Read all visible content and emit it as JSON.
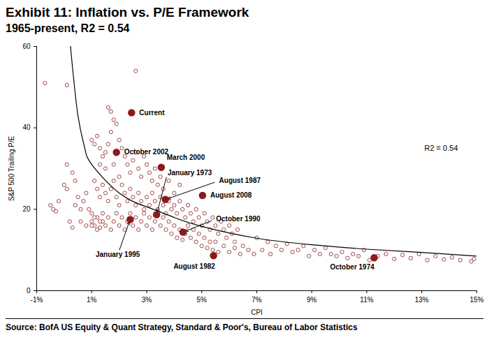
{
  "chart_data": {
    "type": "scatter",
    "title": "Exhibit 11: Inflation vs. P/E Framework",
    "subtitle": "1965-present, R2 = 0.54",
    "x_label": "CPI",
    "y_label": "S&P 500 Trailing P/E",
    "annotation": "R2 = 0.54",
    "source": "Source: BofA US Equity & Quant Strategy, Standard & Poor's, Bureau of Labor Statistics",
    "color": "#8b1a1a",
    "marker": "circle",
    "grid": false,
    "xlim": [
      -1,
      15
    ],
    "ylim": [
      0,
      60
    ],
    "xticks": [
      {
        "value": -1,
        "label": "-1%"
      },
      {
        "value": 1,
        "label": "1%"
      },
      {
        "value": 3,
        "label": "3%"
      },
      {
        "value": 5,
        "label": "5%"
      },
      {
        "value": 7,
        "label": "7%"
      },
      {
        "value": 9,
        "label": "9%"
      },
      {
        "value": 11,
        "label": "11%"
      },
      {
        "value": 13,
        "label": "13%"
      },
      {
        "value": 15,
        "label": "15%"
      }
    ],
    "yticks": [
      0,
      20,
      40,
      60
    ],
    "x": [
      -0.7,
      0.1,
      2.6,
      -0.5,
      -0.4,
      -0.3,
      -0.2,
      0,
      0.1,
      0.1,
      0.3,
      0.4,
      0.5,
      0.4,
      0.6,
      0.7,
      0.8,
      0.9,
      1,
      1,
      1.1,
      1.2,
      1.3,
      1.4,
      1.0,
      1.1,
      1.2,
      1.3,
      1.4,
      1.5,
      1.6,
      1.7,
      1.8,
      1.6,
      1.7,
      1.9,
      2.0,
      2.1,
      2.2,
      2.3,
      2.4,
      2.5,
      2.6,
      2.7,
      2.8,
      2.9,
      3.0,
      3.1,
      3.2,
      3.3,
      3.4,
      3.5,
      3.6,
      3.8,
      4.0,
      4.2,
      1.1,
      1.2,
      1.3,
      1.4,
      1.5,
      1.6,
      1.7,
      1.8,
      1.9,
      2.0,
      2.1,
      2.2,
      2.3,
      2.4,
      2.5,
      2.6,
      2.7,
      2.8,
      2.9,
      3.0,
      3.1,
      3.2,
      3.3,
      3.4,
      3.5,
      3.6,
      3.7,
      3.8,
      3.9,
      4.0,
      4.1,
      4.2,
      4.3,
      4.4,
      4.5,
      4.6,
      4.7,
      4.8,
      4.9,
      5.0,
      5.1,
      5.2,
      5.3,
      5.4,
      5.5,
      5.6,
      5.7,
      5.8,
      5.9,
      6.0,
      6.1,
      6.2,
      6.3,
      1.0,
      1.1,
      1.2,
      1.3,
      1.4,
      1.5,
      1.6,
      1.7,
      1.8,
      1.9,
      2.0,
      2.1,
      2.2,
      2.3,
      2.4,
      2.5,
      2.6,
      2.7,
      2.8,
      2.9,
      3.0,
      3.1,
      3.2,
      3.3,
      3.4,
      3.5,
      3.6,
      3.7,
      3.8,
      3.9,
      4.0,
      4.1,
      4.2,
      4.3,
      4.4,
      4.5,
      4.6,
      4.7,
      4.8,
      4.9,
      5.0,
      5.1,
      5.2,
      5.3,
      5.4,
      5.5,
      5.6,
      5.8,
      6.0,
      6.2,
      6.4,
      6.5,
      6.7,
      6.9,
      7.0,
      7.2,
      7.4,
      7.5,
      7.7,
      7.9,
      8.1,
      8.3,
      8.5,
      8.7,
      8.9,
      9.1,
      9.3,
      9.5,
      9.7,
      9.9,
      10.1,
      10.3,
      10.5,
      10.7,
      10.9,
      11.1,
      11.4,
      11.7,
      12.0,
      12.3,
      12.6,
      12.9,
      13.2,
      13.5,
      13.8,
      14.1,
      14.4,
      14.8,
      14.9,
      1.5,
      1.3,
      2.0,
      1.8,
      0.8,
      0.6,
      0.3,
      0.2
    ],
    "values": [
      51,
      50.5,
      54,
      21,
      20,
      19.5,
      22,
      26,
      25,
      31,
      29,
      27,
      23,
      21,
      20,
      22,
      24,
      20,
      19,
      17,
      16,
      18,
      15.5,
      17,
      37,
      36,
      38,
      35,
      33,
      34,
      36,
      39,
      42,
      45,
      44,
      41,
      37,
      35,
      33,
      31,
      29,
      32,
      34,
      30,
      28,
      33,
      31,
      29,
      27,
      30,
      26,
      28,
      25,
      27,
      24,
      26,
      27,
      25,
      23,
      26,
      24,
      22,
      25,
      27,
      23,
      21,
      26,
      24,
      22,
      25,
      23,
      21,
      24,
      22,
      20,
      23,
      21,
      24,
      22,
      20,
      23,
      21,
      19,
      22,
      20,
      21,
      19,
      22,
      20,
      18,
      21,
      19,
      17,
      20,
      18,
      16,
      19,
      17,
      15,
      18,
      16,
      14,
      17,
      15,
      13,
      16,
      14,
      12,
      15,
      16,
      18,
      15,
      17,
      19,
      16,
      18,
      15,
      17,
      19,
      16,
      18,
      15,
      17,
      19,
      16,
      18,
      15,
      17,
      19,
      16,
      18,
      15,
      17,
      19,
      16,
      18,
      15,
      17,
      14,
      16,
      13,
      15,
      12.5,
      14,
      16,
      13,
      15,
      12,
      14,
      11,
      13,
      10.5,
      12,
      10,
      12,
      9.5,
      11,
      9.5,
      10.5,
      9,
      11,
      10,
      9,
      13,
      10,
      12,
      9,
      11,
      10,
      11.5,
      9.5,
      10,
      11,
      8.5,
      10,
      9,
      10.5,
      9,
      8.5,
      9.5,
      8,
      9,
      8.5,
      10,
      7.5,
      8.5,
      9,
      7.8,
      8.8,
      8,
      9,
      7.5,
      8.5,
      7.7,
      8.2,
      7.5,
      7.2,
      7.8,
      30,
      31,
      28,
      31,
      16,
      17,
      15.5,
      17
    ],
    "fit": {
      "type": "line",
      "x": [
        0.23,
        0.5,
        0.75,
        1,
        2,
        3,
        4,
        5,
        7,
        9,
        11,
        13,
        15
      ],
      "values": [
        60,
        43,
        35,
        31,
        24,
        20.6,
        18,
        15.8,
        12.9,
        11.3,
        10.2,
        9.4,
        8.5
      ]
    },
    "highlights": [
      {
        "label": "Current",
        "x": 2.45,
        "y": 43.7
      },
      {
        "label": "October 2002",
        "x": 1.9,
        "y": 34.0
      },
      {
        "label": "March 2000",
        "x": 3.53,
        "y": 30.3
      },
      {
        "label": "January 1973",
        "x": 3.36,
        "y": 18.7
      },
      {
        "label": "August 1987",
        "x": 3.68,
        "y": 22.4
      },
      {
        "label": "August 2008",
        "x": 5.03,
        "y": 23.4
      },
      {
        "label": "October 1990",
        "x": 4.32,
        "y": 14.4
      },
      {
        "label": "January 1995",
        "x": 2.4,
        "y": 17.5
      },
      {
        "label": "August 1982",
        "x": 5.43,
        "y": 8.6
      },
      {
        "label": "October 1974",
        "x": 11.27,
        "y": 8.1
      }
    ]
  }
}
